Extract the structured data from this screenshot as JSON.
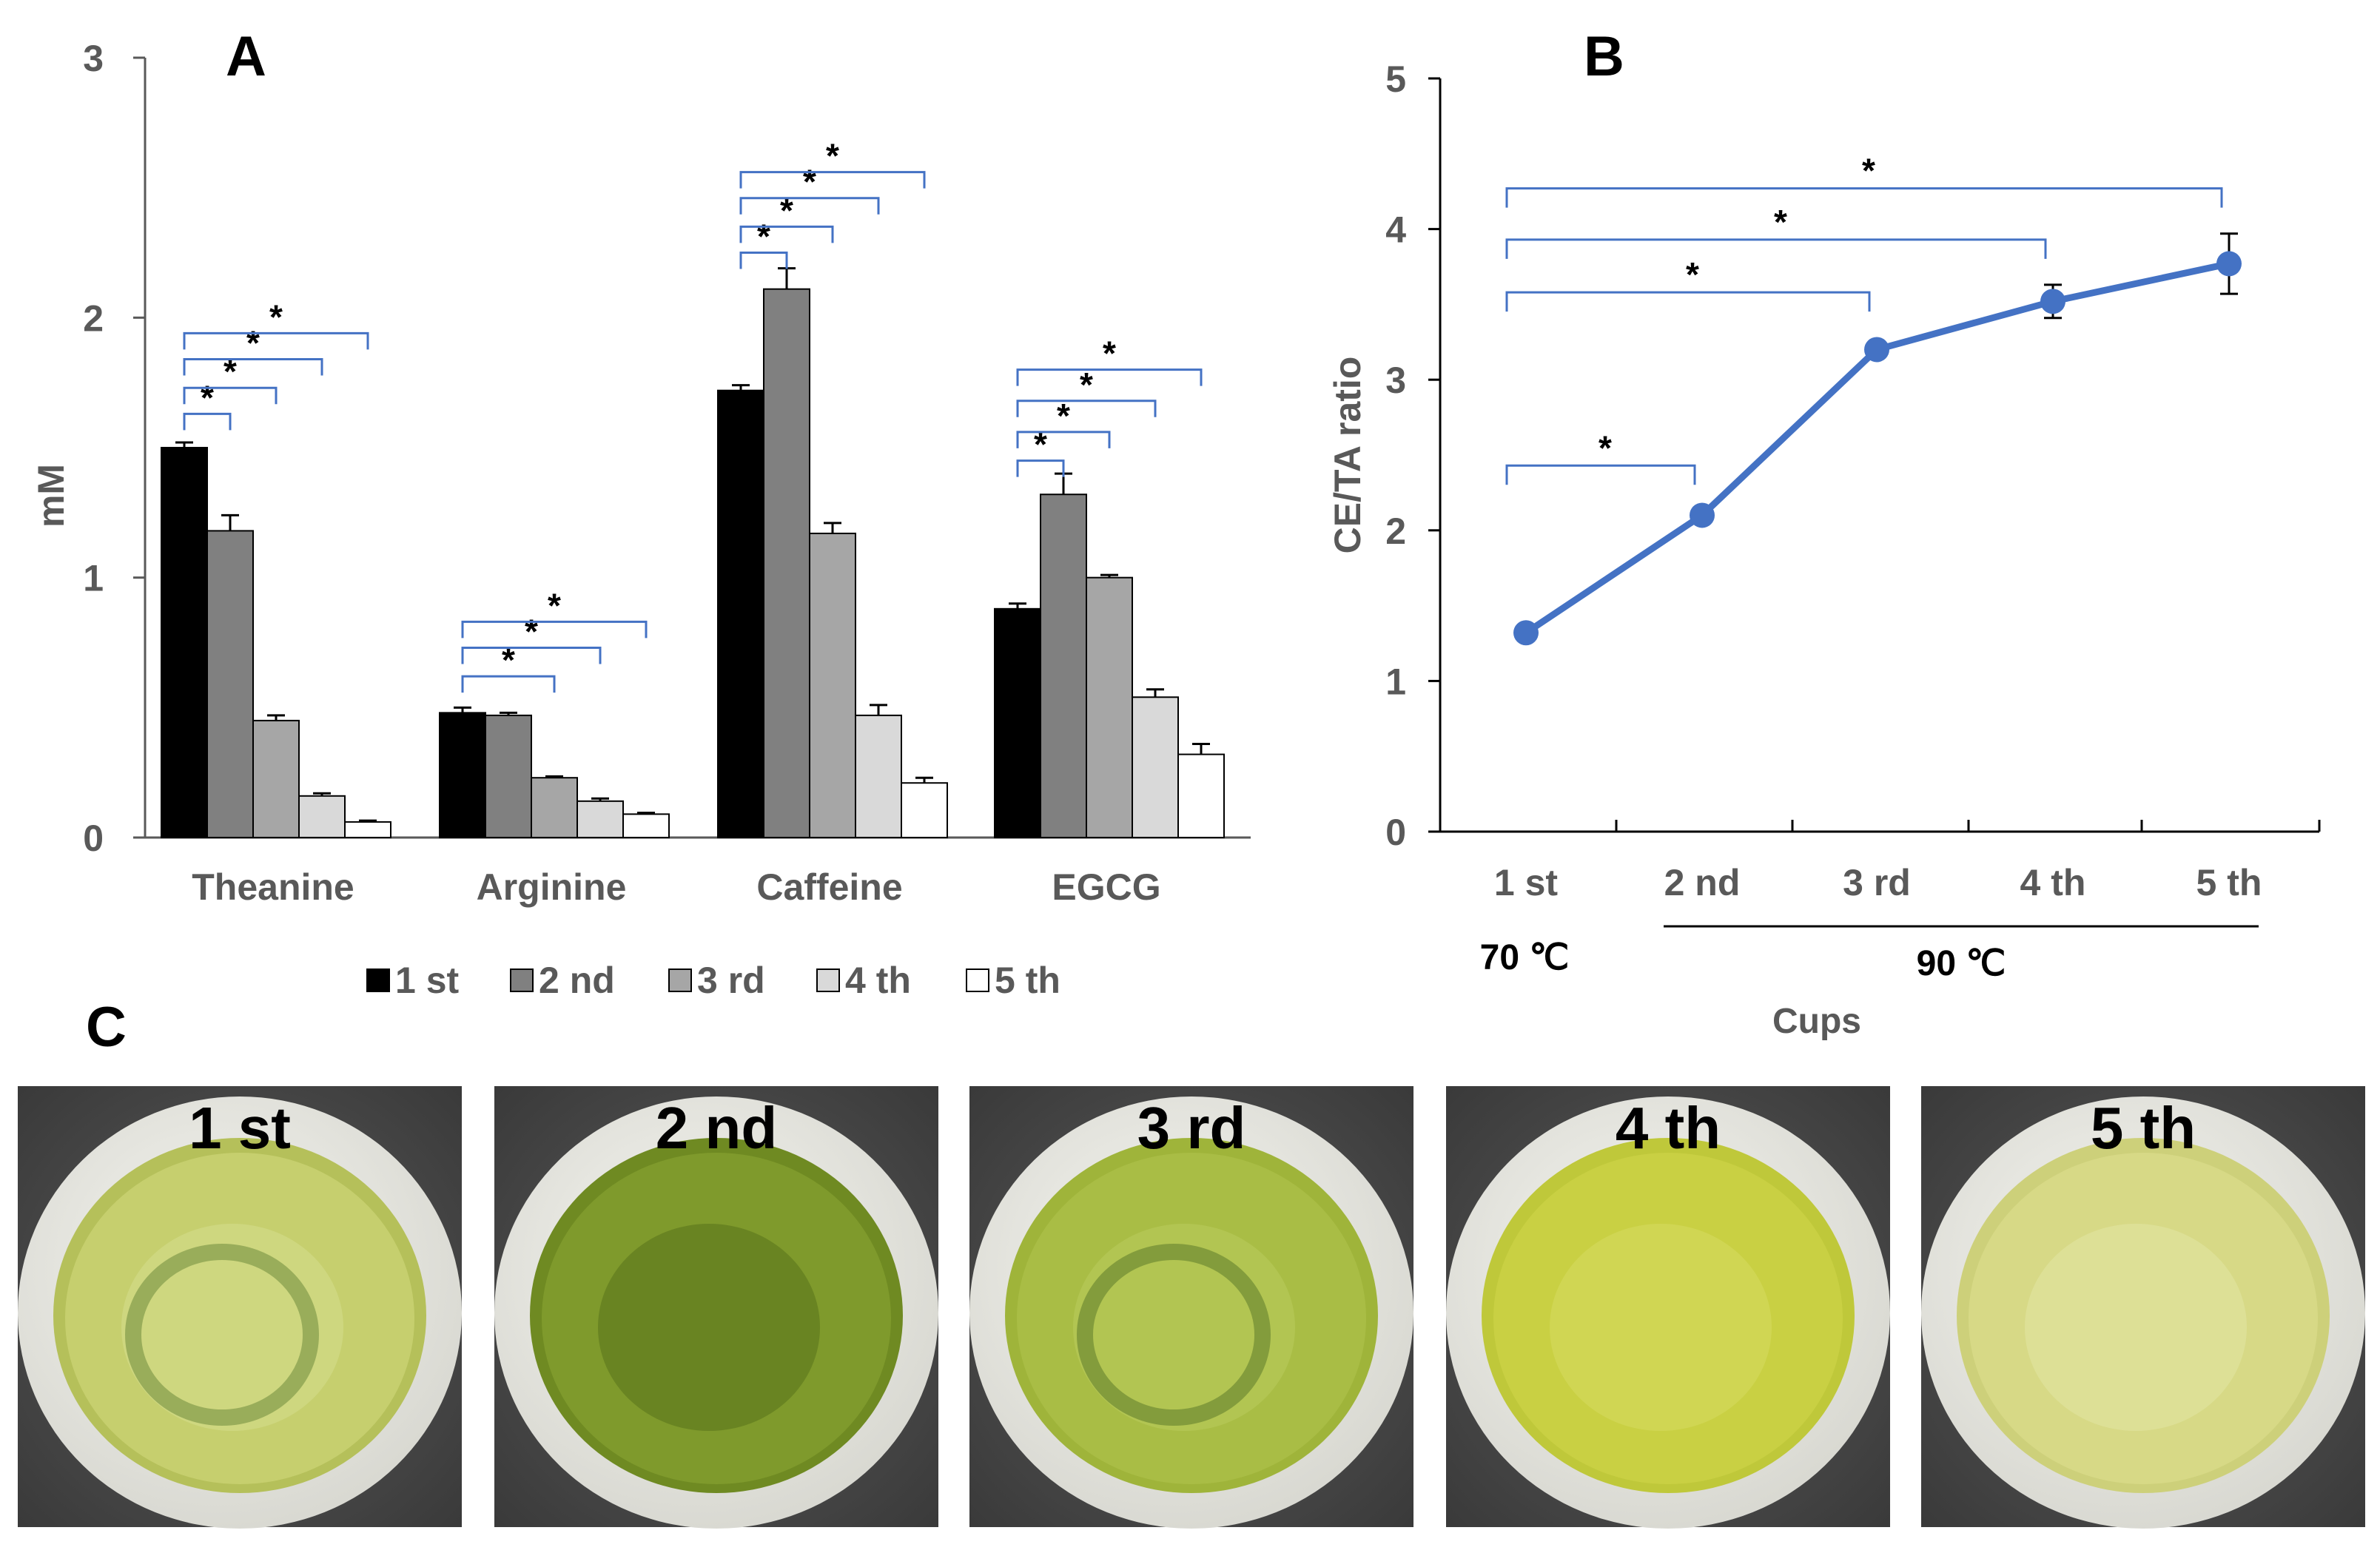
{
  "panel_labels": {
    "a": "A",
    "b": "B",
    "c": "C"
  },
  "colors": {
    "axis": "#595959",
    "tick_text": "#595959",
    "bracket": "#4472c4",
    "line": "#4472c4",
    "bar_1": "#000000",
    "bar_2": "#808080",
    "bar_3": "#a6a6a6",
    "bar_4": "#d9d9d9",
    "bar_5": "#ffffff",
    "bar_stroke": "#000000"
  },
  "chart_data": [
    {
      "panel": "A",
      "type": "bar",
      "ylabel": "mM",
      "xlabel": "",
      "ylim": [
        0,
        3
      ],
      "yticks": [
        "0",
        "1",
        "2",
        "3"
      ],
      "categories": [
        "Theanine",
        "Arginine",
        "Caffeine",
        "EGCG"
      ],
      "series": [
        {
          "name": "1 st",
          "values": [
            1.5,
            0.48,
            1.72,
            0.88
          ],
          "errors": [
            0.02,
            0.02,
            0.02,
            0.02
          ]
        },
        {
          "name": "2 nd",
          "values": [
            1.18,
            0.47,
            2.11,
            1.32
          ],
          "errors": [
            0.06,
            0.01,
            0.08,
            0.08
          ]
        },
        {
          "name": "3 rd",
          "values": [
            0.45,
            0.23,
            1.17,
            1.0
          ],
          "errors": [
            0.02,
            0.005,
            0.04,
            0.01
          ]
        },
        {
          "name": "4 th",
          "values": [
            0.16,
            0.14,
            0.47,
            0.54
          ],
          "errors": [
            0.01,
            0.01,
            0.04,
            0.03
          ]
        },
        {
          "name": "5 th",
          "values": [
            0.06,
            0.09,
            0.21,
            0.32
          ],
          "errors": [
            0.005,
            0.005,
            0.02,
            0.04
          ]
        }
      ],
      "significance_marker": "*",
      "brackets": [
        {
          "category": 0,
          "from": 0,
          "to": 1,
          "y": 1.63,
          "label": "*"
        },
        {
          "category": 0,
          "from": 0,
          "to": 2,
          "y": 1.73,
          "label": "*"
        },
        {
          "category": 0,
          "from": 0,
          "to": 3,
          "y": 1.84,
          "label": "*"
        },
        {
          "category": 0,
          "from": 0,
          "to": 4,
          "y": 1.94,
          "label": "*"
        },
        {
          "category": 1,
          "from": 0,
          "to": 2,
          "y": 0.62,
          "label": "*"
        },
        {
          "category": 1,
          "from": 0,
          "to": 3,
          "y": 0.73,
          "label": "*"
        },
        {
          "category": 1,
          "from": 0,
          "to": 4,
          "y": 0.83,
          "label": "*"
        },
        {
          "category": 2,
          "from": 0,
          "to": 1,
          "y": 2.25,
          "label": "*"
        },
        {
          "category": 2,
          "from": 0,
          "to": 2,
          "y": 2.35,
          "label": "*"
        },
        {
          "category": 2,
          "from": 0,
          "to": 3,
          "y": 2.46,
          "label": "*"
        },
        {
          "category": 2,
          "from": 0,
          "to": 4,
          "y": 2.56,
          "label": "*"
        },
        {
          "category": 3,
          "from": 0,
          "to": 1,
          "y": 1.45,
          "label": "*"
        },
        {
          "category": 3,
          "from": 0,
          "to": 2,
          "y": 1.56,
          "label": "*"
        },
        {
          "category": 3,
          "from": 0,
          "to": 3,
          "y": 1.68,
          "label": "*"
        },
        {
          "category": 3,
          "from": 0,
          "to": 4,
          "y": 1.8,
          "label": "*"
        }
      ],
      "legend": [
        "1 st",
        "2 nd",
        "3 rd",
        "4 th",
        "5 th"
      ],
      "legend_position": "bottom"
    },
    {
      "panel": "B",
      "type": "line",
      "ylabel": "CE/TA ratio",
      "xlabel": "Cups",
      "ylim": [
        0,
        5
      ],
      "yticks": [
        "0",
        "1",
        "2",
        "3",
        "4",
        "5"
      ],
      "categories": [
        "1 st",
        "2 nd",
        "3 rd",
        "4 th",
        "5 th"
      ],
      "values": [
        1.32,
        2.1,
        3.2,
        3.52,
        3.77
      ],
      "errors": [
        0.04,
        0.05,
        0.05,
        0.11,
        0.2
      ],
      "temperatures": {
        "t70": "70 ℃",
        "t90": "90 ℃"
      },
      "significance_marker": "*",
      "brackets": [
        {
          "from": 0,
          "to": 1,
          "y": 2.43,
          "label": "*"
        },
        {
          "from": 0,
          "to": 2,
          "y": 3.58,
          "label": "*"
        },
        {
          "from": 0,
          "to": 3,
          "y": 3.93,
          "label": "*"
        },
        {
          "from": 0,
          "to": 4,
          "y": 4.27,
          "label": "*"
        }
      ]
    }
  ],
  "photos": {
    "label": "C",
    "cups": [
      {
        "label": "1 st",
        "liquor": "#c6cf6e",
        "edge": "#b5c05a",
        "center": "#d2da86",
        "ring": "#6e8a3c"
      },
      {
        "label": "2 nd",
        "liquor": "#7f9a2c",
        "edge": "#6f8a22",
        "center": "#5f7a1e",
        "ring": ""
      },
      {
        "label": "3 rd",
        "liquor": "#a9bd45",
        "edge": "#9fb43a",
        "center": "#b7c958",
        "ring": "#5d7a2a"
      },
      {
        "label": "4 th",
        "liquor": "#c9d043",
        "edge": "#bfc83a",
        "center": "#d3d85a",
        "ring": ""
      },
      {
        "label": "5 th",
        "liquor": "#d7d986",
        "edge": "#cdd07a",
        "center": "#e0e29c",
        "ring": ""
      }
    ]
  }
}
